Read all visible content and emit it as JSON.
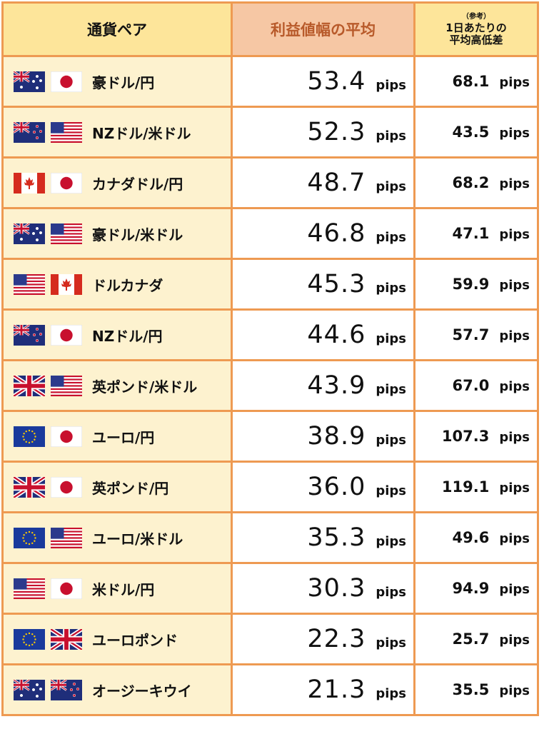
{
  "header": {
    "pair": "通貨ペア",
    "avg": "利益値幅の平均",
    "ref_note": "（参考）",
    "ref_line1": "1日あたりの",
    "ref_line2": "平均高低差"
  },
  "unit": "pips",
  "rows": [
    {
      "name": "豪ドル/円",
      "flags": [
        "au",
        "jp"
      ],
      "avg": "53.4",
      "daily": "68.1"
    },
    {
      "name": "NZドル/米ドル",
      "flags": [
        "nz",
        "us"
      ],
      "avg": "52.3",
      "daily": "43.5"
    },
    {
      "name": "カナダドル/円",
      "flags": [
        "ca",
        "jp"
      ],
      "avg": "48.7",
      "daily": "68.2"
    },
    {
      "name": "豪ドル/米ドル",
      "flags": [
        "au",
        "us"
      ],
      "avg": "46.8",
      "daily": "47.1"
    },
    {
      "name": "ドルカナダ",
      "flags": [
        "us",
        "ca"
      ],
      "avg": "45.3",
      "daily": "59.9"
    },
    {
      "name": "NZドル/円",
      "flags": [
        "nz",
        "jp"
      ],
      "avg": "44.6",
      "daily": "57.7"
    },
    {
      "name": "英ポンド/米ドル",
      "flags": [
        "gb",
        "us"
      ],
      "avg": "43.9",
      "daily": "67.0"
    },
    {
      "name": "ユーロ/円",
      "flags": [
        "eu",
        "jp"
      ],
      "avg": "38.9",
      "daily": "107.3"
    },
    {
      "name": "英ポンド/円",
      "flags": [
        "gb",
        "jp"
      ],
      "avg": "36.0",
      "daily": "119.1"
    },
    {
      "name": "ユーロ/米ドル",
      "flags": [
        "eu",
        "us"
      ],
      "avg": "35.3",
      "daily": "49.6"
    },
    {
      "name": "米ドル/円",
      "flags": [
        "us",
        "jp"
      ],
      "avg": "30.3",
      "daily": "94.9"
    },
    {
      "name": "ユーロポンド",
      "flags": [
        "eu",
        "gb"
      ],
      "avg": "22.3",
      "daily": "25.7"
    },
    {
      "name": "オージーキウイ",
      "flags": [
        "au",
        "nz"
      ],
      "avg": "21.3",
      "daily": "35.5"
    }
  ],
  "flag_icons": {
    "au": "australia-flag-icon",
    "nz": "new-zealand-flag-icon",
    "jp": "japan-flag-icon",
    "us": "united-states-flag-icon",
    "ca": "canada-flag-icon",
    "gb": "united-kingdom-flag-icon",
    "eu": "european-union-flag-icon"
  },
  "colors": {
    "border": "#ee9a52",
    "header_bg": "#fde59a",
    "avg_header_bg": "#f6c7a4",
    "avg_header_text": "#b85a2a",
    "pair_cell_bg": "#fdf2cf"
  }
}
